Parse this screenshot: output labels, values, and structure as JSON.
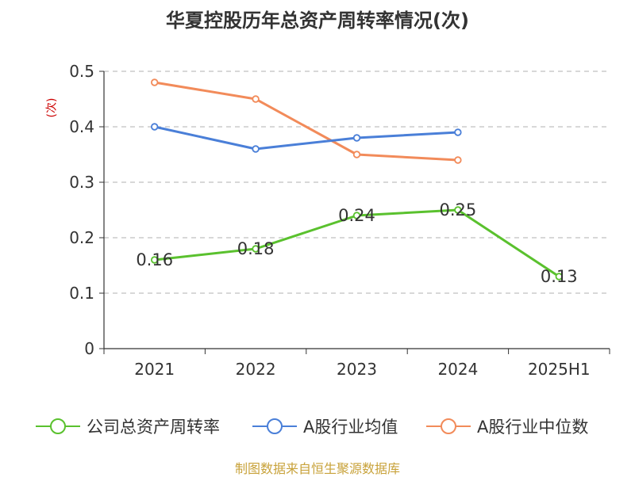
{
  "title": "华夏控股历年总资产周转率情况(次)",
  "unit_label": "(次)",
  "source": "制图数据来自恒生聚源数据库",
  "colors": {
    "company": "#5ac12e",
    "industry_avg": "#4a7fd8",
    "industry_median": "#f28b5a",
    "grid": "#c0c0c0",
    "axis": "#333333",
    "unit": "#cc0000",
    "source": "#c8a23a"
  },
  "chart_data": {
    "type": "line",
    "title": "华夏控股历年总资产周转率情况(次)",
    "ylabel": "(次)",
    "xlabel": "",
    "categories": [
      "2021",
      "2022",
      "2023",
      "2024",
      "2025H1"
    ],
    "ylim": [
      0,
      0.5
    ],
    "yticks": [
      "0",
      "0.1",
      "0.2",
      "0.3",
      "0.4",
      "0.5"
    ],
    "grid": true,
    "legend_position": "bottom",
    "series": [
      {
        "name": "公司总资产周转率",
        "values": [
          0.16,
          0.18,
          0.24,
          0.25,
          0.13
        ],
        "labels": [
          "0.16",
          "0.18",
          "0.24",
          "0.25",
          "0.13"
        ],
        "color_key": "company"
      },
      {
        "name": "A股行业均值",
        "values": [
          0.4,
          0.36,
          0.38,
          0.39,
          null
        ],
        "color_key": "industry_avg"
      },
      {
        "name": "A股行业中位数",
        "values": [
          0.48,
          0.45,
          0.35,
          0.34,
          null
        ],
        "color_key": "industry_median"
      }
    ]
  }
}
